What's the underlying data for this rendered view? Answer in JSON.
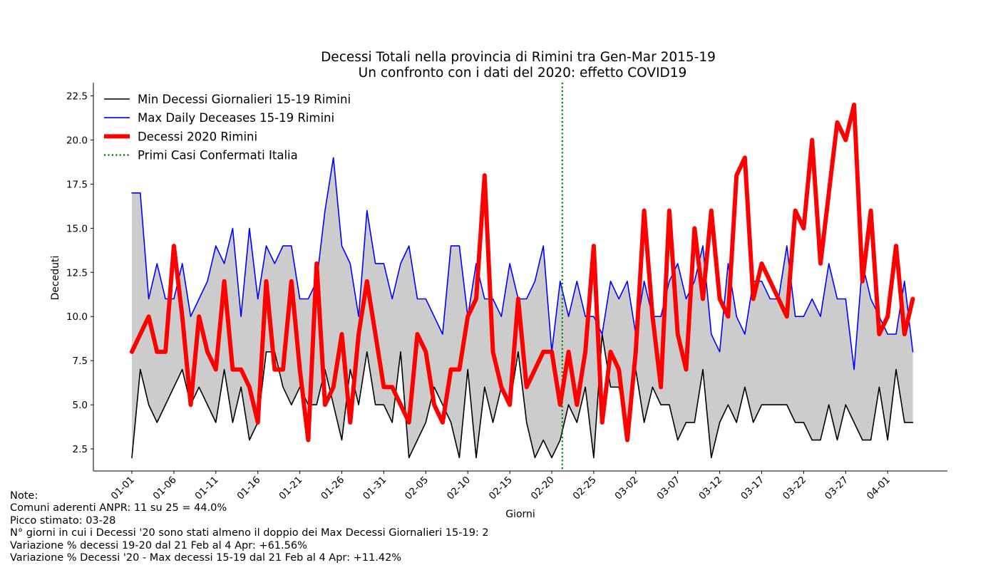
{
  "chart_data": {
    "type": "line",
    "title": "Decessi Totali nella provincia di Rimini tra Gen-Mar 2015-19",
    "subtitle": "Un confronto con i dati del 2020: effetto COVID19",
    "xlabel": "Giorni",
    "ylabel": "Deceduti",
    "start_date": "01-01",
    "x_tick_labels": [
      "01-01",
      "01-06",
      "01-11",
      "01-16",
      "01-21",
      "01-26",
      "01-31",
      "02-05",
      "02-10",
      "02-15",
      "02-20",
      "02-25",
      "03-02",
      "03-07",
      "03-12",
      "03-17",
      "03-22",
      "03-27",
      "04-01"
    ],
    "y_tick_labels": [
      "2.5",
      "5.0",
      "7.5",
      "10.0",
      "12.5",
      "15.0",
      "17.5",
      "20.0",
      "22.5"
    ],
    "ylim": [
      1.25,
      23.25
    ],
    "grid": false,
    "legend_position": "top-left",
    "vline_day_index": 51,
    "series": [
      {
        "name": "Min Decessi Giornalieri 15-19 Rimini",
        "color": "#000000",
        "style": "solid",
        "values": [
          2,
          7,
          5,
          4,
          5,
          6,
          7,
          5,
          6,
          5,
          4,
          7,
          4,
          6,
          3,
          4,
          8,
          8,
          6,
          5,
          6,
          5,
          5,
          7,
          5,
          3,
          7,
          5,
          8,
          5,
          5,
          4,
          8,
          2,
          3,
          4,
          6,
          5,
          4,
          2,
          7,
          2,
          6,
          4,
          6,
          5,
          8,
          4,
          2,
          3,
          2,
          3,
          5,
          4,
          6,
          2,
          9,
          6,
          6,
          4,
          7,
          4,
          6,
          5,
          5,
          3,
          4,
          4,
          7,
          2,
          4,
          5,
          4,
          6,
          4,
          5,
          5,
          5,
          5,
          4,
          4,
          3,
          3,
          5,
          3,
          5,
          4,
          3,
          3,
          6,
          3,
          7,
          4,
          4
        ]
      },
      {
        "name": "Max Daily Deceases 15-19 Rimini",
        "color": "#0000ff",
        "style": "solid",
        "values": [
          17,
          17,
          11,
          13,
          11,
          11,
          13,
          10,
          11,
          12,
          14,
          13,
          15,
          10,
          15,
          11,
          14,
          13,
          14,
          14,
          11,
          11,
          12,
          16,
          19,
          14,
          13,
          10,
          16,
          13,
          13,
          11,
          13,
          14,
          11,
          11,
          10,
          9,
          14,
          14,
          10,
          13,
          11,
          11,
          10,
          13,
          11,
          11,
          12,
          14,
          8,
          12,
          10,
          12,
          10,
          10,
          9,
          12,
          11,
          12,
          9,
          12,
          10,
          10,
          12,
          13,
          11,
          12,
          14,
          9,
          8,
          13,
          10,
          9,
          12,
          12,
          11,
          11,
          14,
          10,
          10,
          11,
          10,
          13,
          11,
          11,
          7,
          13,
          11,
          10,
          9,
          9,
          12,
          8
        ]
      },
      {
        "name": "Decessi 2020 Rimini",
        "color": "#ff0000",
        "style": "solid-thick",
        "values": [
          8,
          9,
          10,
          8,
          8,
          14,
          10,
          5,
          10,
          8,
          7,
          12,
          7,
          7,
          6,
          4,
          12,
          7,
          7,
          12,
          7,
          3,
          13,
          5,
          6,
          9,
          4,
          9,
          12,
          9,
          6,
          6,
          5,
          4,
          9,
          8,
          5,
          4,
          7,
          7,
          10,
          11,
          18,
          8,
          6,
          5,
          11,
          6,
          7,
          8,
          8,
          5,
          8,
          5,
          8,
          14,
          4,
          8,
          7,
          3,
          8,
          16,
          10,
          6,
          16,
          9,
          7,
          15,
          11,
          16,
          11,
          10,
          18,
          19,
          11,
          13,
          12,
          11,
          10,
          16,
          15,
          20,
          13,
          17,
          21,
          20,
          22,
          12,
          16,
          9,
          10,
          14,
          9,
          11
        ]
      },
      {
        "name": "Primi Casi Confermati Italia",
        "color": "#008000",
        "style": "dotted"
      }
    ]
  },
  "notes": [
    "Note:",
    "Comuni aderenti ANPR: 11 su 25 = 44.0%",
    "Picco stimato: 03-28",
    "N° giorni in cui i Decessi '20 sono stati almeno il doppio dei Max Decessi Giornalieri 15-19: 2",
    "Variazione % decessi 19-20 dal 21 Feb al 4 Apr: +61.56%",
    "Variazione % Decessi '20 - Max decessi 15-19 dal 21 Feb al 4 Apr: +11.42%"
  ]
}
